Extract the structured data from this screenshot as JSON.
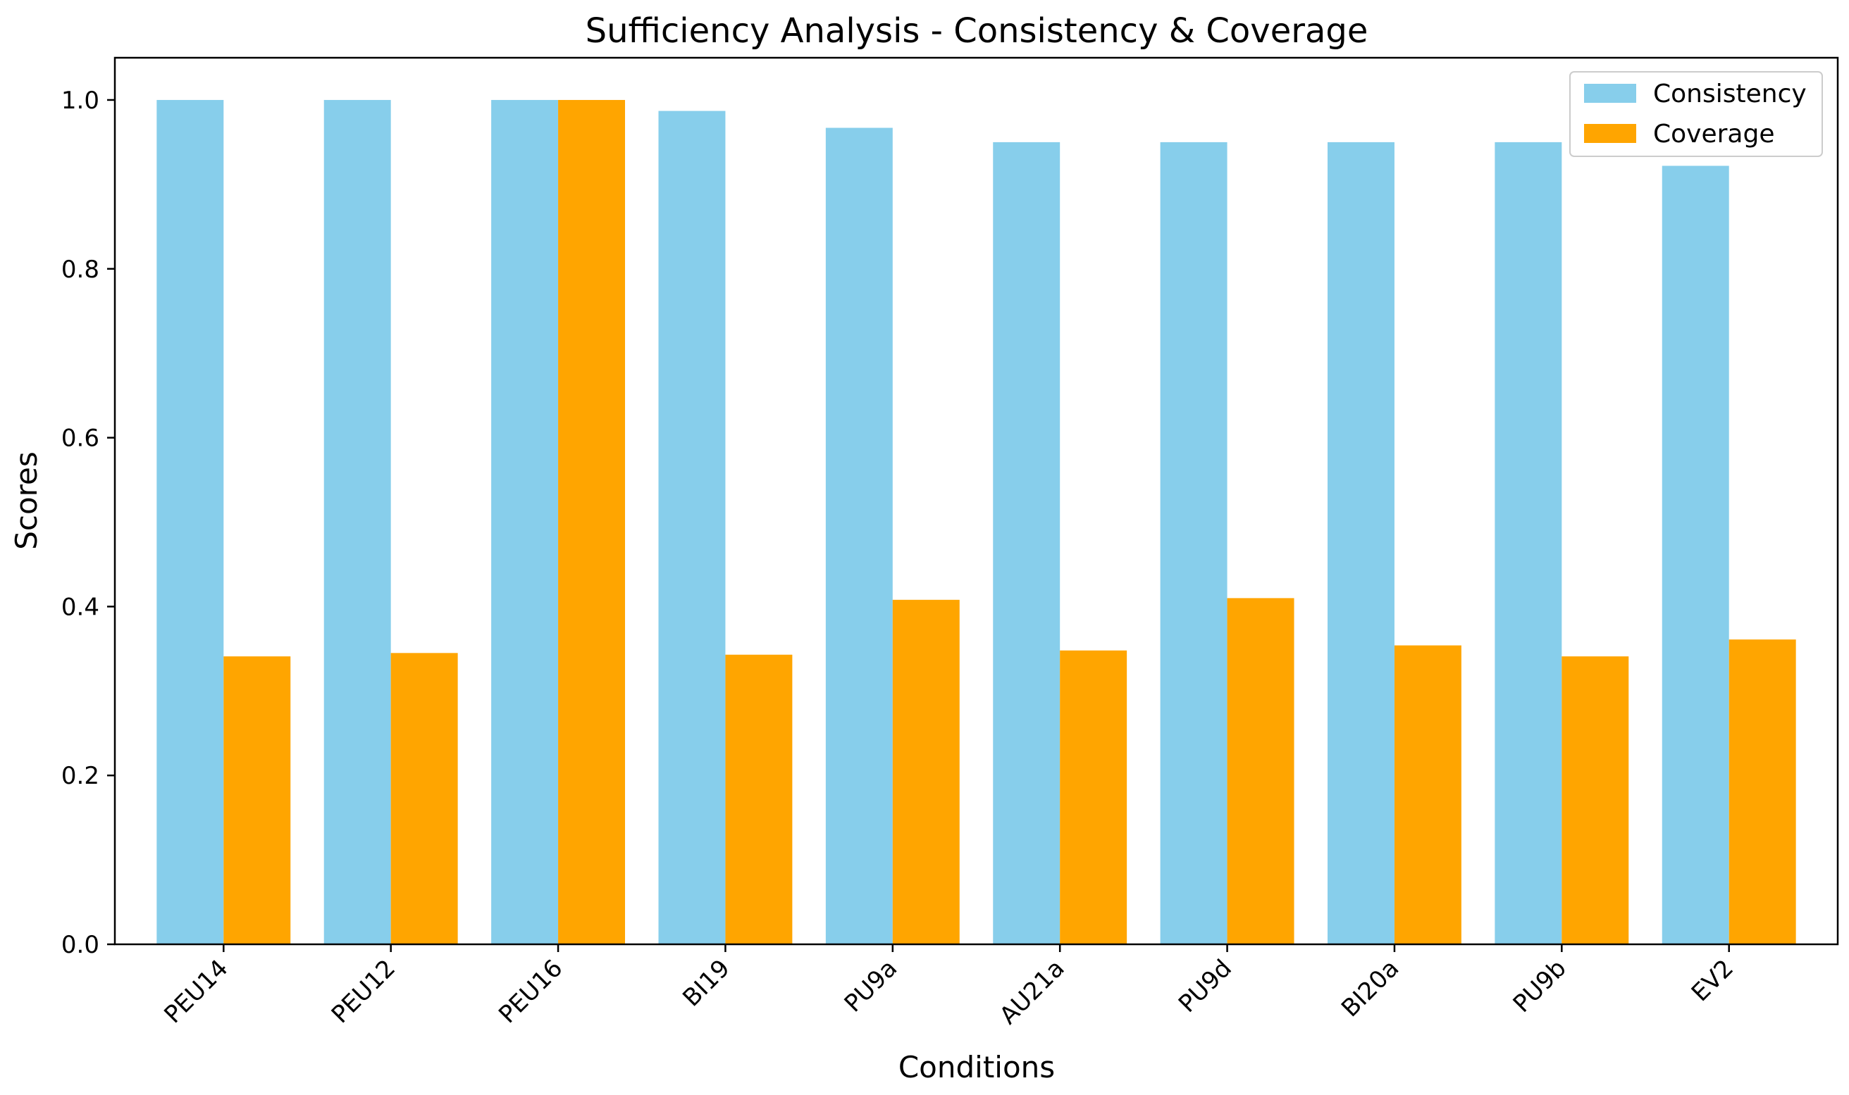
{
  "chart_data": {
    "type": "bar",
    "title": "Sufficiency Analysis - Consistency & Coverage",
    "xlabel": "Conditions",
    "ylabel": "Scores",
    "ylim": [
      0,
      1.05
    ],
    "yticks": [
      0.0,
      0.2,
      0.4,
      0.6,
      0.8,
      1.0
    ],
    "ytick_labels": [
      "0.0",
      "0.2",
      "0.4",
      "0.6",
      "0.8",
      "1.0"
    ],
    "grid": false,
    "legend_position": "top-right",
    "categories": [
      "PEU14",
      "PEU12",
      "PEU16",
      "BI19",
      "PU9a",
      "AU21a",
      "PU9d",
      "BI20a",
      "PU9b",
      "EV2"
    ],
    "series": [
      {
        "name": "Consistency",
        "color": "#87ceeb",
        "values": [
          1.0,
          1.0,
          1.0,
          0.987,
          0.967,
          0.95,
          0.95,
          0.95,
          0.95,
          0.922
        ]
      },
      {
        "name": "Coverage",
        "color": "#ffa500",
        "values": [
          0.341,
          0.345,
          1.0,
          0.343,
          0.408,
          0.348,
          0.41,
          0.354,
          0.341,
          0.361
        ]
      }
    ]
  }
}
